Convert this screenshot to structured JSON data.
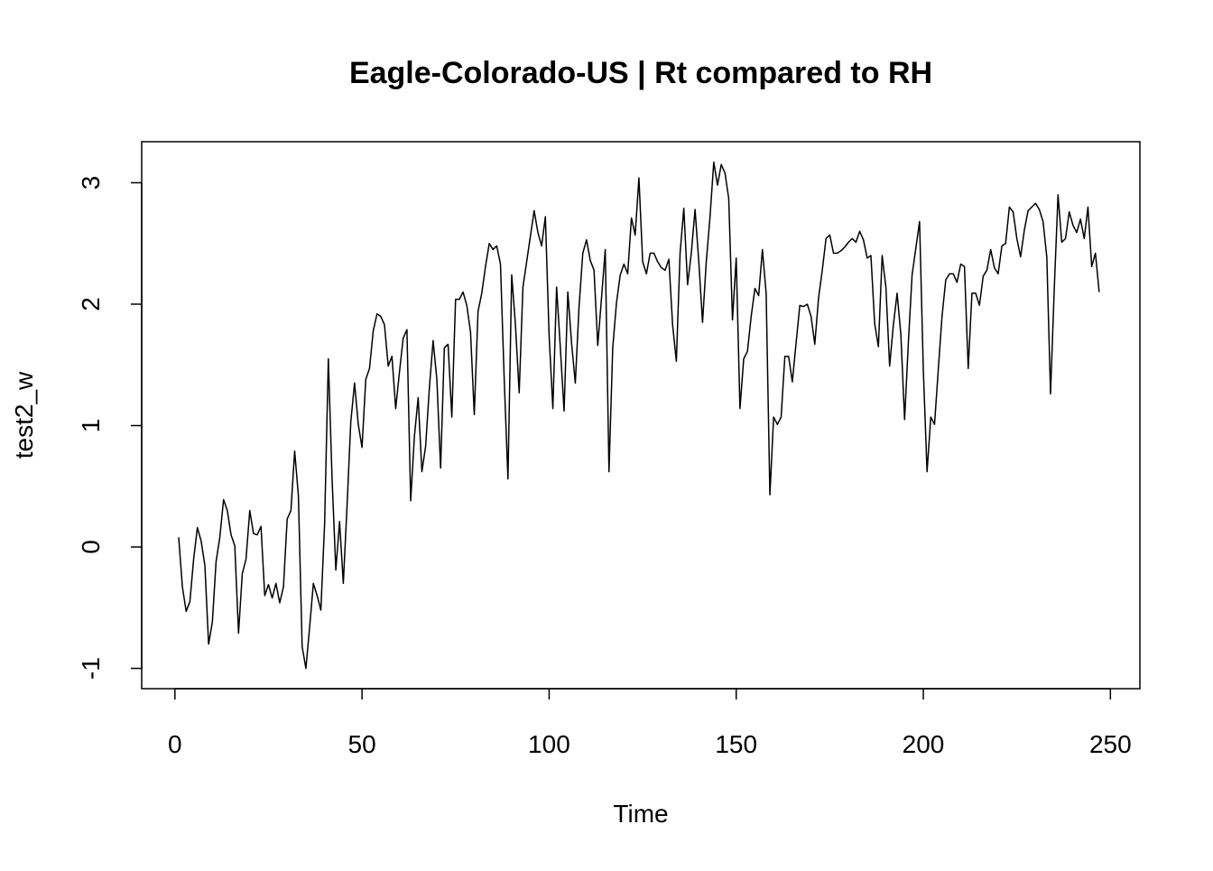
{
  "chart_data": {
    "type": "line",
    "title": "Eagle-Colorado-US | Rt compared to RH",
    "xlabel": "Time",
    "ylabel": "test2_w",
    "color": "#000000",
    "xlim": [
      -8.88,
      257.88
    ],
    "xticks": [
      0,
      50,
      100,
      150,
      200,
      250
    ],
    "ylim": [
      -1.167,
      3.338
    ],
    "yticks": [
      -1,
      0,
      1,
      2,
      3
    ],
    "x": [
      1,
      2,
      3,
      4,
      5,
      6,
      7,
      8,
      9,
      10,
      11,
      12,
      13,
      14,
      15,
      16,
      17,
      18,
      19,
      20,
      21,
      22,
      23,
      24,
      25,
      26,
      27,
      28,
      29,
      30,
      31,
      32,
      33,
      34,
      35,
      36,
      37,
      38,
      39,
      40,
      41,
      42,
      43,
      44,
      45,
      46,
      47,
      48,
      49,
      50,
      51,
      52,
      53,
      54,
      55,
      56,
      57,
      58,
      59,
      60,
      61,
      62,
      63,
      64,
      65,
      66,
      67,
      68,
      69,
      70,
      71,
      72,
      73,
      74,
      75,
      76,
      77,
      78,
      79,
      80,
      81,
      82,
      83,
      84,
      85,
      86,
      87,
      88,
      89,
      90,
      91,
      92,
      93,
      94,
      95,
      96,
      97,
      98,
      99,
      100,
      101,
      102,
      103,
      104,
      105,
      106,
      107,
      108,
      109,
      110,
      111,
      112,
      113,
      114,
      115,
      116,
      117,
      118,
      119,
      120,
      121,
      122,
      123,
      124,
      125,
      126,
      127,
      128,
      129,
      130,
      131,
      132,
      133,
      134,
      135,
      136,
      137,
      138,
      139,
      140,
      141,
      142,
      143,
      144,
      145,
      146,
      147,
      148,
      149,
      150,
      151,
      152,
      153,
      154,
      155,
      156,
      157,
      158,
      159,
      160,
      161,
      162,
      163,
      164,
      165,
      166,
      167,
      168,
      169,
      170,
      171,
      172,
      173,
      174,
      175,
      176,
      177,
      178,
      179,
      180,
      181,
      182,
      183,
      184,
      185,
      186,
      187,
      188,
      189,
      190,
      191,
      192,
      193,
      194,
      195,
      196,
      197,
      198,
      199,
      200,
      201,
      202,
      203,
      204,
      205,
      206,
      207,
      208,
      209,
      210,
      211,
      212,
      213,
      214,
      215,
      216,
      217,
      218,
      219,
      220,
      221,
      222,
      223,
      224,
      225,
      226,
      227,
      228,
      229,
      230,
      231,
      232,
      233,
      234,
      235,
      236,
      237,
      238,
      239,
      240,
      241,
      242,
      243,
      244,
      245,
      246,
      247
    ],
    "values": [
      0.08,
      -0.33,
      -0.53,
      -0.45,
      -0.1,
      0.16,
      0.05,
      -0.15,
      -0.8,
      -0.62,
      -0.12,
      0.08,
      0.39,
      0.3,
      0.1,
      0.01,
      -0.71,
      -0.22,
      -0.1,
      0.3,
      0.11,
      0.1,
      0.17,
      -0.4,
      -0.31,
      -0.42,
      -0.3,
      -0.46,
      -0.33,
      0.23,
      0.3,
      0.79,
      0.42,
      -0.82,
      -1.0,
      -0.66,
      -0.3,
      -0.4,
      -0.52,
      0.19,
      1.55,
      0.56,
      -0.19,
      0.21,
      -0.3,
      0.34,
      1.03,
      1.35,
      1.01,
      0.82,
      1.38,
      1.47,
      1.78,
      1.92,
      1.9,
      1.83,
      1.49,
      1.57,
      1.14,
      1.44,
      1.72,
      1.79,
      0.38,
      0.91,
      1.23,
      0.62,
      0.83,
      1.31,
      1.7,
      1.38,
      0.65,
      1.64,
      1.67,
      1.07,
      2.04,
      2.04,
      2.1,
      1.99,
      1.77,
      1.09,
      1.94,
      2.09,
      2.31,
      2.5,
      2.45,
      2.48,
      2.33,
      1.38,
      0.56,
      2.24,
      1.83,
      1.27,
      2.14,
      2.35,
      2.56,
      2.77,
      2.59,
      2.48,
      2.72,
      1.74,
      1.14,
      2.14,
      1.64,
      1.12,
      2.1,
      1.68,
      1.35,
      1.98,
      2.42,
      2.53,
      2.36,
      2.28,
      1.66,
      2.05,
      2.45,
      0.62,
      1.64,
      2.01,
      2.24,
      2.33,
      2.25,
      2.71,
      2.57,
      3.04,
      2.35,
      2.25,
      2.42,
      2.42,
      2.35,
      2.3,
      2.28,
      2.37,
      1.83,
      1.53,
      2.42,
      2.79,
      2.16,
      2.42,
      2.78,
      2.35,
      1.85,
      2.35,
      2.72,
      3.17,
      2.98,
      3.15,
      3.08,
      2.87,
      1.87,
      2.38,
      1.14,
      1.55,
      1.61,
      1.9,
      2.13,
      2.07,
      2.45,
      2.09,
      0.43,
      1.07,
      1.01,
      1.07,
      1.57,
      1.57,
      1.36,
      1.68,
      1.99,
      1.98,
      2.0,
      1.9,
      1.67,
      2.05,
      2.28,
      2.54,
      2.57,
      2.42,
      2.42,
      2.44,
      2.47,
      2.51,
      2.54,
      2.51,
      2.6,
      2.53,
      2.38,
      2.4,
      1.84,
      1.65,
      2.4,
      2.14,
      1.49,
      1.83,
      2.09,
      1.75,
      1.05,
      1.68,
      2.24,
      2.46,
      2.68,
      1.46,
      0.62,
      1.07,
      1.01,
      1.46,
      1.9,
      2.2,
      2.25,
      2.25,
      2.18,
      2.33,
      2.31,
      1.47,
      2.09,
      2.09,
      1.99,
      2.23,
      2.28,
      2.45,
      2.3,
      2.25,
      2.48,
      2.5,
      2.8,
      2.76,
      2.54,
      2.39,
      2.61,
      2.77,
      2.8,
      2.83,
      2.78,
      2.68,
      2.39,
      1.26,
      2.13,
      2.9,
      2.51,
      2.54,
      2.76,
      2.65,
      2.59,
      2.7,
      2.54,
      2.8,
      2.31,
      2.42,
      2.1
    ]
  }
}
